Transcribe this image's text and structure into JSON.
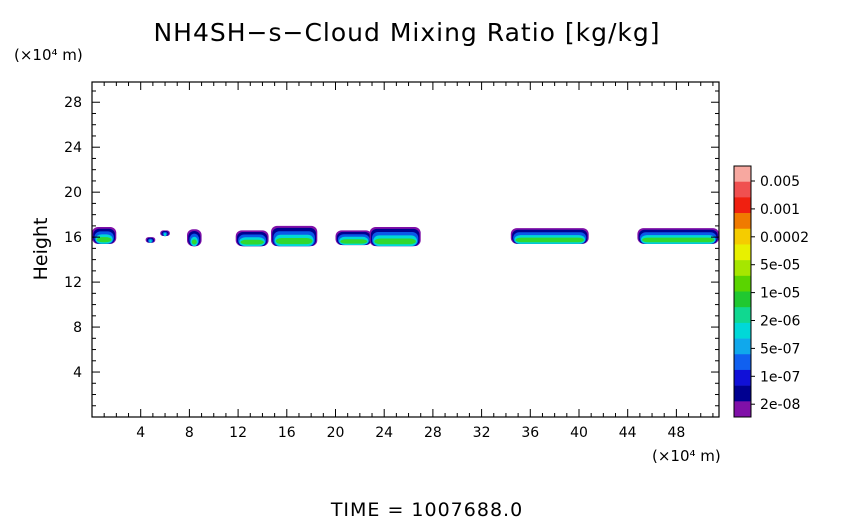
{
  "chart_data": {
    "type": "heatmap",
    "title": "NH4SH−s−Cloud Mixing Ratio [kg/kg]",
    "ylabel": "Height",
    "x_unit": "(×10⁴ m)",
    "y_unit": "(×10⁴ m)",
    "xlim": [
      0,
      51.5
    ],
    "ylim": [
      0,
      29.8
    ],
    "x_ticks": [
      4,
      8,
      12,
      16,
      20,
      24,
      28,
      32,
      36,
      40,
      44,
      48
    ],
    "y_ticks": [
      4,
      8,
      12,
      16,
      20,
      24,
      28
    ],
    "footer": "TIME = 1007688.0",
    "colorbar": {
      "labels": [
        "0.005",
        "0.001",
        "0.0002",
        "5e-05",
        "1e-05",
        "2e-06",
        "5e-07",
        "1e-07",
        "2e-08"
      ],
      "colors_top_to_bottom": [
        "#f7a8a0",
        "#f05050",
        "#f02010",
        "#f07a00",
        "#f5cc00",
        "#e8f000",
        "#a6e600",
        "#5ad400",
        "#20c830",
        "#10d890",
        "#00d8d8",
        "#10a8ec",
        "#1060f0",
        "#1010d8",
        "#000090",
        "#8010a8"
      ]
    },
    "cloud_colors": {
      "green": "#30d830",
      "cyan": "#00d8d8",
      "blue": "#0a58e8",
      "navy": "#000090",
      "purple": "#8010a8"
    },
    "cloud_segments": [
      {
        "x0": 0.0,
        "x1": 2.0,
        "base": 15.4,
        "top": 16.9
      },
      {
        "x0": 4.4,
        "x1": 5.2,
        "base": 15.5,
        "top": 16.0
      },
      {
        "x0": 5.6,
        "x1": 6.4,
        "base": 16.1,
        "top": 16.6
      },
      {
        "x0": 7.8,
        "x1": 9.0,
        "base": 15.2,
        "top": 16.7
      },
      {
        "x0": 11.8,
        "x1": 14.5,
        "base": 15.2,
        "top": 16.6
      },
      {
        "x0": 14.7,
        "x1": 18.5,
        "base": 15.2,
        "top": 17.0
      },
      {
        "x0": 20.0,
        "x1": 23.0,
        "base": 15.3,
        "top": 16.6
      },
      {
        "x0": 22.8,
        "x1": 27.0,
        "base": 15.2,
        "top": 16.9
      },
      {
        "x0": 34.4,
        "x1": 40.8,
        "base": 15.4,
        "top": 16.8
      },
      {
        "x0": 44.8,
        "x1": 51.5,
        "base": 15.4,
        "top": 16.8
      }
    ]
  }
}
